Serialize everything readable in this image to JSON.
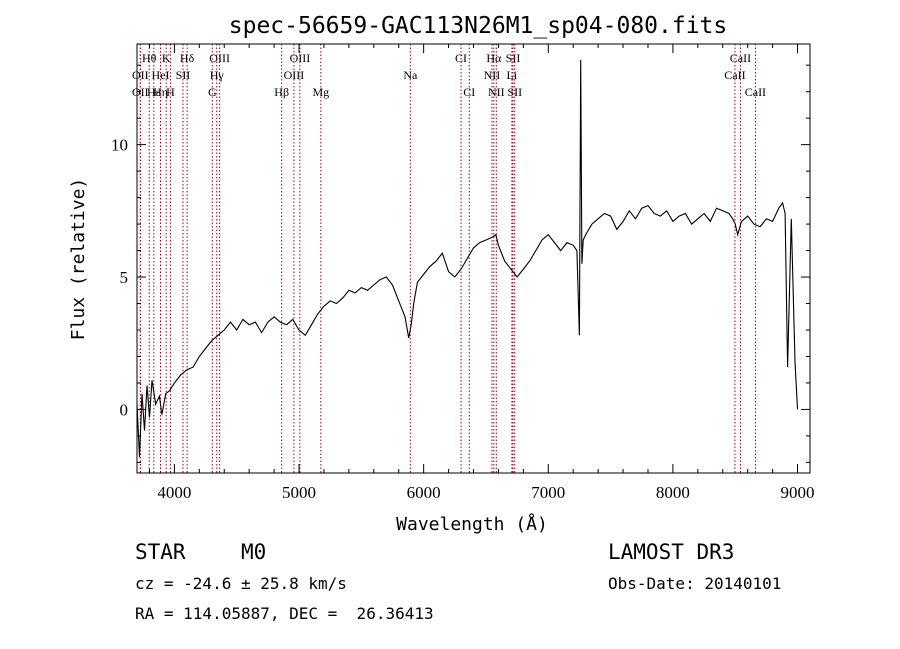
{
  "chart_data": {
    "type": "line",
    "title": "spec-56659-GAC113N26M1_sp04-080.fits",
    "xlabel": "Wavelength (Å)",
    "ylabel": "Flux (relative)",
    "xlim": [
      3700,
      9100
    ],
    "ylim": [
      -2.4,
      13.8
    ],
    "xticks": [
      4000,
      5000,
      6000,
      7000,
      8000,
      9000
    ],
    "yticks": [
      0,
      5,
      10
    ],
    "series": [
      {
        "name": "flux",
        "x": [
          3700,
          3720,
          3740,
          3760,
          3780,
          3800,
          3820,
          3850,
          3880,
          3900,
          3930,
          3960,
          4000,
          4050,
          4100,
          4150,
          4200,
          4250,
          4300,
          4350,
          4400,
          4450,
          4500,
          4550,
          4600,
          4650,
          4700,
          4750,
          4800,
          4850,
          4900,
          4950,
          5000,
          5050,
          5100,
          5150,
          5200,
          5250,
          5300,
          5350,
          5400,
          5450,
          5500,
          5550,
          5600,
          5650,
          5700,
          5750,
          5800,
          5850,
          5880,
          5900,
          5920,
          5950,
          6000,
          6050,
          6100,
          6150,
          6200,
          6250,
          6300,
          6350,
          6400,
          6450,
          6500,
          6550,
          6580,
          6600,
          6650,
          6700,
          6750,
          6800,
          6850,
          6900,
          6950,
          7000,
          7050,
          7100,
          7150,
          7200,
          7230,
          7250,
          7260,
          7270,
          7280,
          7300,
          7350,
          7400,
          7450,
          7500,
          7550,
          7600,
          7650,
          7700,
          7750,
          7800,
          7850,
          7900,
          7950,
          8000,
          8050,
          8100,
          8150,
          8200,
          8250,
          8300,
          8350,
          8400,
          8450,
          8480,
          8500,
          8520,
          8550,
          8600,
          8650,
          8700,
          8750,
          8800,
          8850,
          8880,
          8900,
          8920,
          8950,
          8980,
          9000
        ],
        "y": [
          0.2,
          -1.8,
          0.6,
          -0.8,
          0.9,
          -0.3,
          1.1,
          0.2,
          0.5,
          -0.2,
          0.6,
          0.7,
          1.0,
          1.3,
          1.5,
          1.6,
          2.0,
          2.3,
          2.6,
          2.8,
          3.0,
          3.3,
          3.0,
          3.4,
          3.2,
          3.3,
          2.9,
          3.3,
          3.5,
          3.3,
          3.2,
          3.4,
          3.0,
          2.8,
          3.2,
          3.6,
          3.9,
          4.1,
          4.0,
          4.2,
          4.5,
          4.4,
          4.6,
          4.5,
          4.7,
          4.9,
          5.0,
          4.7,
          4.1,
          3.5,
          2.7,
          3.2,
          4.0,
          4.8,
          5.1,
          5.4,
          5.6,
          5.9,
          5.2,
          5.0,
          5.3,
          5.7,
          6.1,
          6.3,
          6.4,
          6.5,
          6.6,
          6.2,
          5.6,
          5.3,
          5.0,
          5.3,
          5.6,
          6.0,
          6.4,
          6.6,
          6.3,
          6.0,
          6.3,
          6.2,
          6.0,
          2.8,
          13.2,
          5.5,
          6.4,
          6.6,
          7.0,
          7.2,
          7.4,
          7.3,
          6.8,
          7.1,
          7.5,
          7.2,
          7.6,
          7.7,
          7.4,
          7.3,
          7.5,
          7.1,
          7.3,
          7.4,
          7.0,
          7.2,
          7.4,
          7.1,
          7.6,
          7.5,
          7.4,
          7.2,
          7.0,
          6.6,
          7.1,
          7.3,
          7.0,
          6.9,
          7.2,
          7.1,
          7.6,
          7.8,
          7.4,
          1.6,
          7.2,
          1.8,
          0.0
        ]
      }
    ],
    "lines": [
      {
        "label": "Hθ",
        "x": 3798,
        "row": 1
      },
      {
        "label": "K",
        "x": 3934,
        "row": 1
      },
      {
        "label": "Hδ",
        "x": 4102,
        "row": 1
      },
      {
        "label": "OIII",
        "x": 4363,
        "row": 1
      },
      {
        "label": "OIII",
        "x": 5007,
        "row": 1
      },
      {
        "label": "CI",
        "x": 6300,
        "row": 1
      },
      {
        "label": "Hα",
        "x": 6563,
        "row": 1
      },
      {
        "label": "SII",
        "x": 6717,
        "row": 1
      },
      {
        "label": "CaII",
        "x": 8542,
        "row": 1
      },
      {
        "label": "OII",
        "x": 3727,
        "row": 2
      },
      {
        "label": "HeI",
        "x": 3889,
        "row": 2
      },
      {
        "label": "SII",
        "x": 4069,
        "row": 2
      },
      {
        "label": "Hγ",
        "x": 4340,
        "row": 2
      },
      {
        "label": "OIII",
        "x": 4959,
        "row": 2
      },
      {
        "label": "Na",
        "x": 5893,
        "row": 2
      },
      {
        "label": "NII",
        "x": 6548,
        "row": 2
      },
      {
        "label": "Li",
        "x": 6708,
        "row": 2
      },
      {
        "label": "CaII",
        "x": 8498,
        "row": 2
      },
      {
        "label": "OII",
        "x": 3727,
        "row": 3
      },
      {
        "label": "Hε",
        "x": 3835,
        "row": 3
      },
      {
        "label": "Hη",
        "x": 3889,
        "row": 3
      },
      {
        "label": "H",
        "x": 3968,
        "row": 3
      },
      {
        "label": "G",
        "x": 4304,
        "row": 3
      },
      {
        "label": "Hβ",
        "x": 4861,
        "row": 3
      },
      {
        "label": "Mg",
        "x": 5175,
        "row": 3
      },
      {
        "label": "CI",
        "x": 6366,
        "row": 3
      },
      {
        "label": "NII",
        "x": 6583,
        "row": 3
      },
      {
        "label": "SII",
        "x": 6731,
        "row": 3
      },
      {
        "label": "CaII",
        "x": 8662,
        "row": 3
      }
    ],
    "line_color": "#a0001e",
    "grid": false
  },
  "info": {
    "class": "STAR",
    "subclass": "M0",
    "survey": "LAMOST DR3",
    "cz": "cz = -24.6 ± 25.8 km/s",
    "obs_date": "Obs-Date: 20140101",
    "coords": "RA = 114.05887, DEC =  26.36413"
  }
}
